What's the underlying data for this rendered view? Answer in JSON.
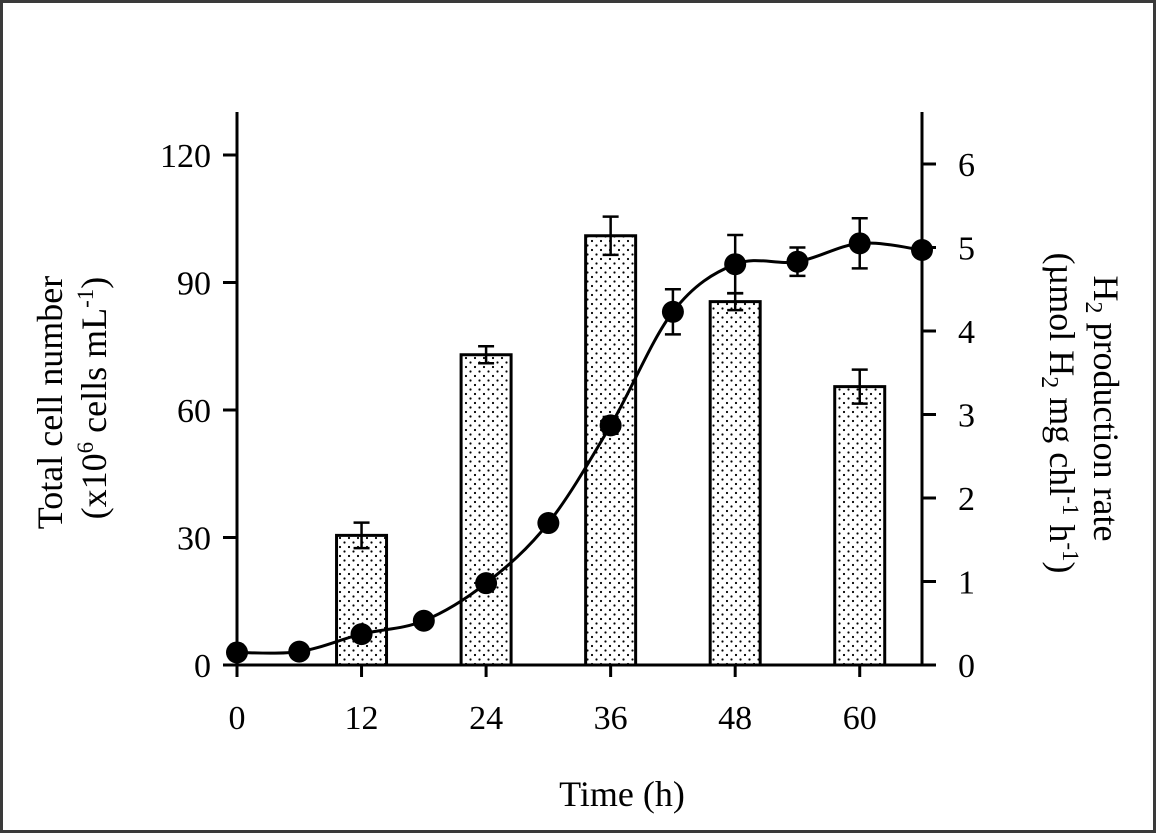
{
  "chart_data": {
    "type": "bar+line",
    "xlabel": "Time (h)",
    "x_ticks": [
      "0",
      "12",
      "24",
      "36",
      "48",
      "60"
    ],
    "xlim": [
      0,
      66
    ],
    "y_left": {
      "label_line1": "Total cell number",
      "label_line2_pre": "(x10",
      "label_line2_sup1": "6",
      "label_line2_mid": " cells mL",
      "label_line2_sup2": "-1",
      "label_line2_post": ")",
      "ylim": [
        0,
        120
      ],
      "ticks": [
        "0",
        "30",
        "60",
        "90",
        "120"
      ]
    },
    "y_right": {
      "label_line1_pre": "H",
      "label_line1_sub": "2",
      "label_line1_post": " production rate",
      "label_line2_a": "(µmol H",
      "label_line2_sub": "2",
      "label_line2_b": " mg chl",
      "label_line2_sup1": "-1",
      "label_line2_c": " h",
      "label_line2_sup2": "-1",
      "label_line2_d": ")",
      "ylim": [
        0,
        6
      ],
      "ticks": [
        "0",
        "1",
        "2",
        "3",
        "4",
        "5",
        "6"
      ]
    },
    "bars": {
      "axis": "left",
      "pattern": "dotted",
      "x": [
        12,
        24,
        36,
        48,
        60
      ],
      "values": [
        30.5,
        73,
        101,
        85.5,
        65.5
      ],
      "errors": [
        3,
        2,
        4.5,
        2,
        4
      ]
    },
    "line": {
      "axis": "right",
      "marker": "filled-circle",
      "x": [
        0,
        6,
        12,
        18,
        24,
        30,
        36,
        42,
        48,
        54,
        60,
        66
      ],
      "values": [
        0.15,
        0.16,
        0.37,
        0.53,
        0.98,
        1.7,
        2.87,
        4.23,
        4.8,
        4.83,
        5.05,
        4.97
      ],
      "errors": [
        0,
        0,
        0,
        0,
        0,
        0,
        0.1,
        0.27,
        0.35,
        0.17,
        0.3,
        0
      ]
    },
    "legend": "none",
    "grid": false
  }
}
